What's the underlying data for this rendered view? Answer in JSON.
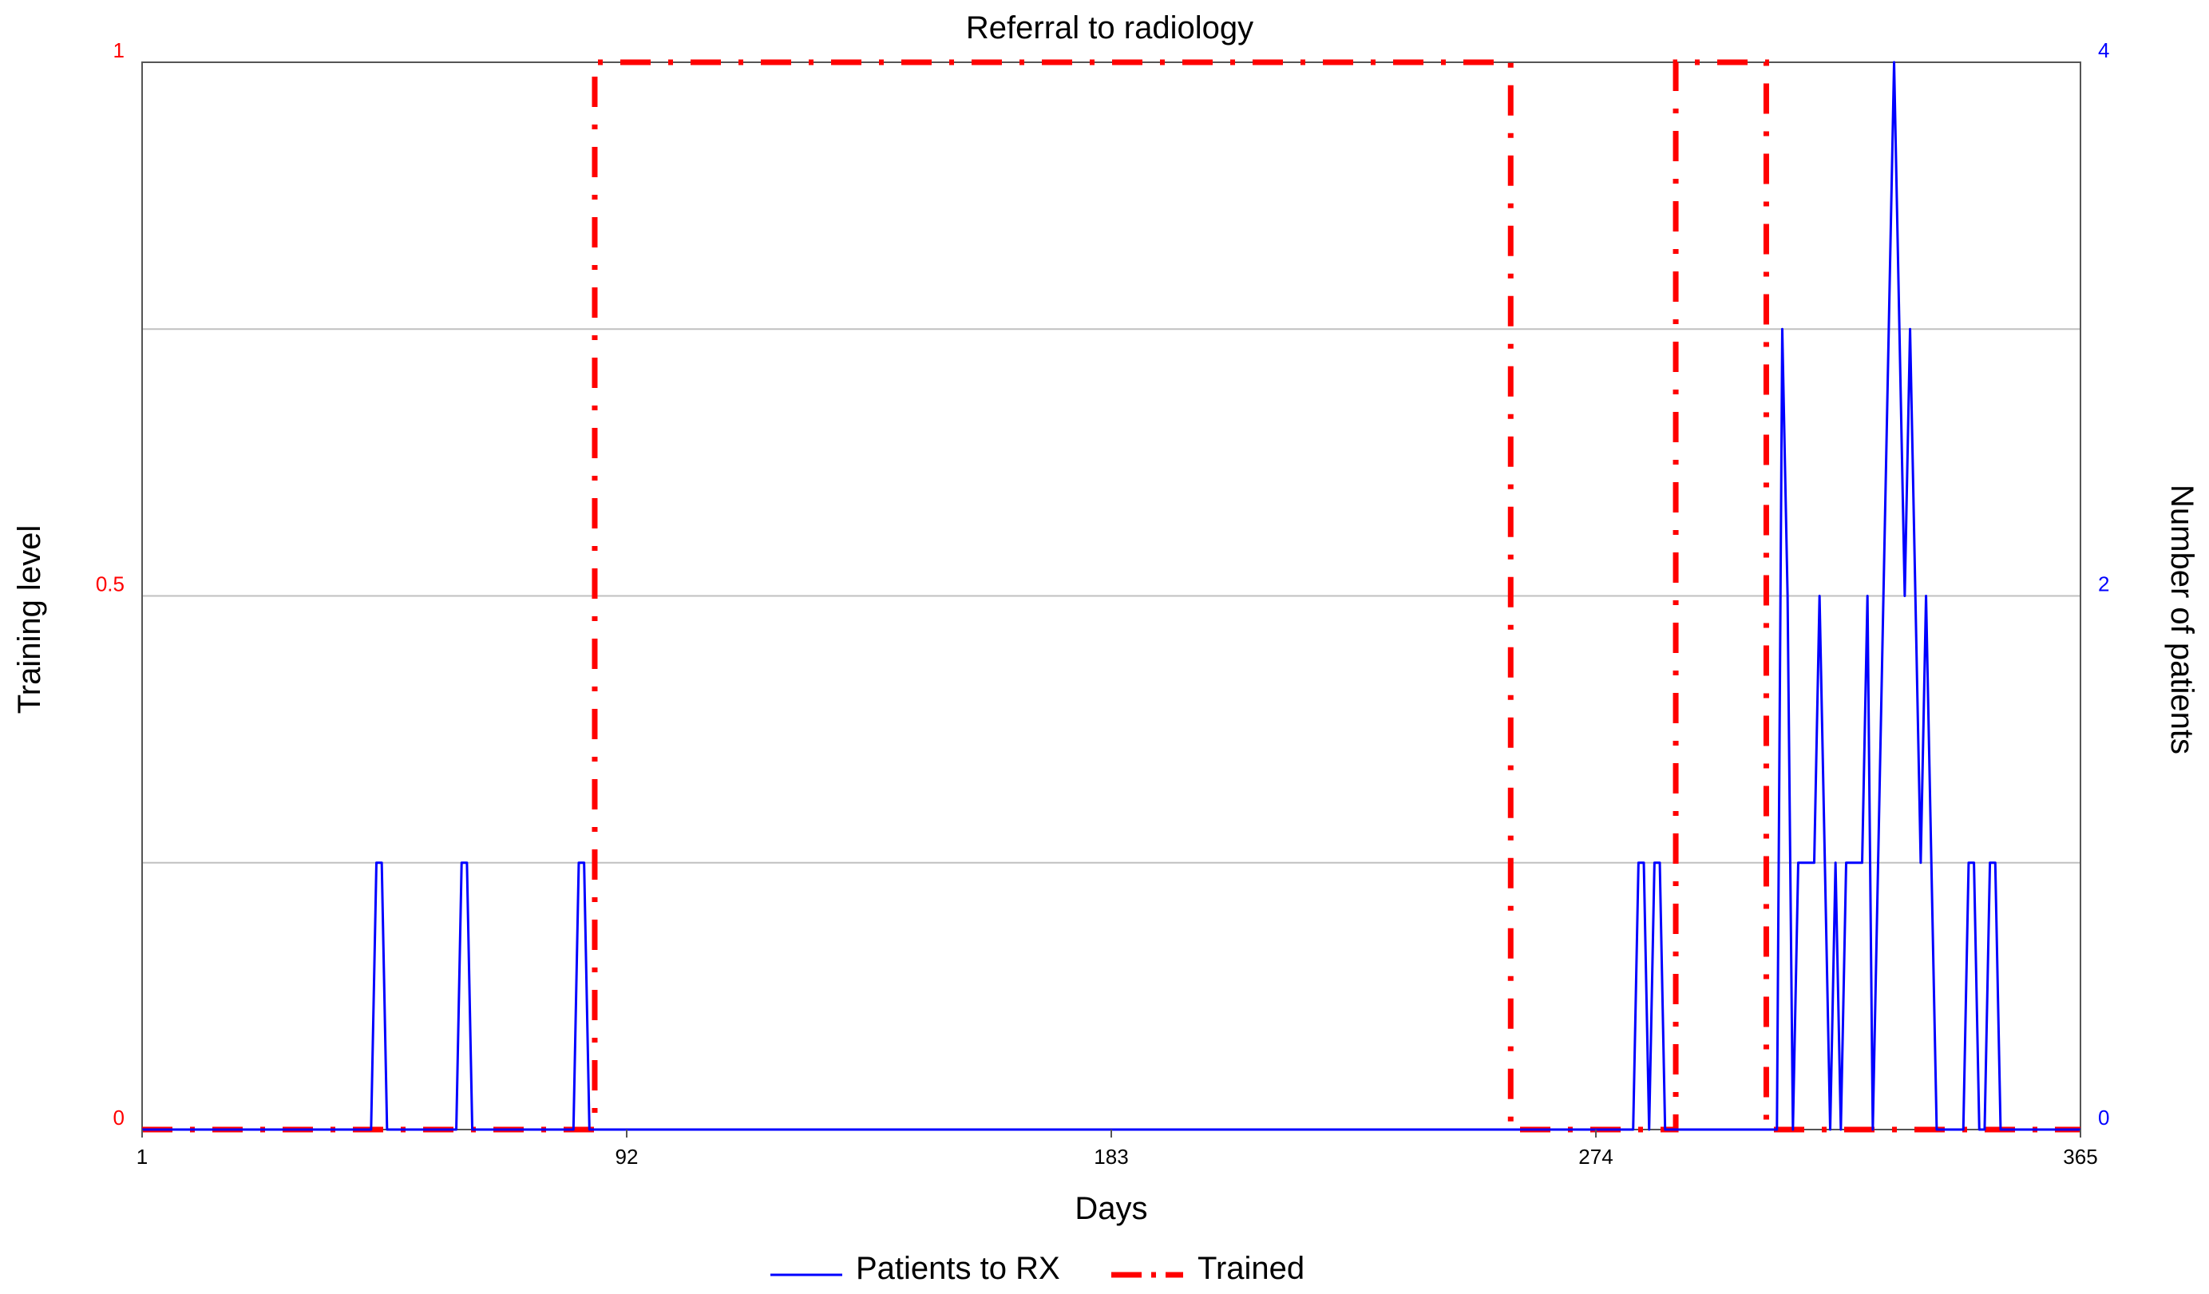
{
  "chart_data": {
    "type": "line",
    "title": "Referral to radiology",
    "xlabel": "Days",
    "ylabel_left": "Training level",
    "ylabel_right": "Number of patients",
    "x_ticks": [
      1,
      92,
      183,
      274,
      365
    ],
    "xlim": [
      1,
      365
    ],
    "y_left_ticks": [
      0,
      0.5,
      1
    ],
    "y_left_tick_labels": [
      "0",
      "0.5",
      "1"
    ],
    "ylim_left": [
      0,
      1
    ],
    "y_right_ticks": [
      0,
      2,
      4
    ],
    "y_right_tick_labels": [
      "0",
      "2",
      "4"
    ],
    "ylim_right": [
      0,
      4
    ],
    "grid": "horizontal",
    "legend_position": "bottom",
    "colors": {
      "patients": "#0000ff",
      "trained": "#ff0000",
      "left_ticks": "#ff0000",
      "right_ticks": "#0000ff",
      "grid": "#c0c0c0"
    },
    "series": [
      {
        "name": "Patients to RX",
        "axis": "right",
        "style": "solid",
        "x": [
          1,
          44,
          45,
          46,
          47,
          60,
          61,
          62,
          63,
          82,
          83,
          84,
          85,
          281,
          282,
          283,
          284,
          285,
          286,
          287,
          288,
          289,
          308,
          309,
          310,
          311,
          312,
          313,
          314,
          315,
          316,
          317,
          318,
          319,
          320,
          321,
          322,
          323,
          324,
          325,
          326,
          327,
          328,
          329,
          330,
          331,
          332,
          333,
          334,
          335,
          336,
          337,
          338,
          339,
          340,
          341,
          342,
          343,
          344,
          345,
          346,
          347,
          348,
          349,
          350,
          351,
          352,
          353,
          354,
          365
        ],
        "values": [
          0,
          0,
          1,
          1,
          0,
          0,
          1,
          1,
          0,
          0,
          1,
          1,
          0,
          0,
          1,
          1,
          0,
          1,
          1,
          0,
          0,
          0,
          0,
          3,
          2,
          0,
          1,
          1,
          1,
          1,
          2,
          1,
          0,
          1,
          0,
          1,
          1,
          1,
          1,
          2,
          0,
          1,
          2,
          3,
          4,
          3,
          2,
          3,
          2,
          1,
          2,
          1,
          0,
          0,
          0,
          0,
          0,
          0,
          1,
          1,
          0,
          0,
          1,
          1,
          0,
          0,
          0,
          0,
          0,
          0
        ]
      },
      {
        "name": "Trained",
        "axis": "left",
        "style": "dash-dot",
        "x": [
          1,
          86,
          86,
          258,
          258,
          289,
          289,
          306,
          306,
          365
        ],
        "values": [
          0,
          0,
          1,
          1,
          0,
          0,
          1,
          1,
          0,
          0
        ]
      }
    ]
  }
}
